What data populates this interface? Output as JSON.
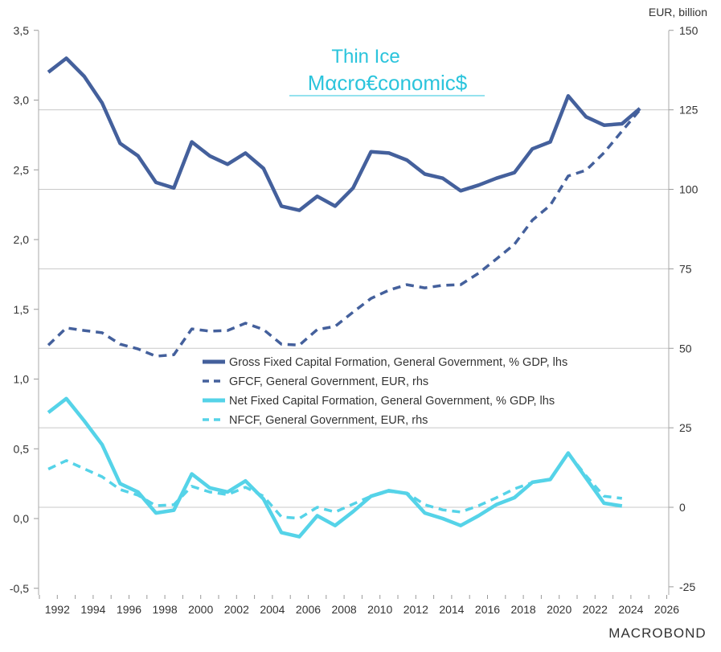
{
  "chart_data": {
    "type": "line",
    "title": "",
    "right_axis_unit": "EUR, billion",
    "x": [
      1991,
      1992,
      1993,
      1994,
      1995,
      1996,
      1997,
      1998,
      1999,
      2000,
      2001,
      2002,
      2003,
      2004,
      2005,
      2006,
      2007,
      2008,
      2009,
      2010,
      2011,
      2012,
      2013,
      2014,
      2015,
      2016,
      2017,
      2018,
      2019,
      2020,
      2021,
      2022,
      2023,
      2024
    ],
    "x_tick_labels": [
      "1992",
      "1994",
      "1996",
      "1998",
      "2000",
      "2002",
      "2004",
      "2006",
      "2008",
      "2010",
      "2012",
      "2014",
      "2016",
      "2018",
      "2020",
      "2022",
      "2024",
      "2026"
    ],
    "ylim_left": [
      -0.5,
      3.5
    ],
    "y_left_tick_labels": [
      "-0,5",
      "0,0",
      "0,5",
      "1,0",
      "1,5",
      "2,0",
      "2,5",
      "3,0",
      "3,5"
    ],
    "ylim_right": [
      -25,
      150
    ],
    "y_right_tick_labels": [
      "-25",
      "0",
      "25",
      "50",
      "75",
      "100",
      "125",
      "150"
    ],
    "grid": "horizontal, right-axis ticks",
    "legend_placement": "center",
    "series": [
      {
        "name": "Gross Fixed Capital Formation, General Government, % GDP, lhs",
        "axis": "left",
        "style": "solid",
        "color": "#44609c",
        "values": [
          3.2,
          3.3,
          3.17,
          2.98,
          2.69,
          2.6,
          2.41,
          2.37,
          2.7,
          2.6,
          2.54,
          2.62,
          2.51,
          2.24,
          2.21,
          2.31,
          2.24,
          2.37,
          2.63,
          2.62,
          2.57,
          2.47,
          2.44,
          2.35,
          2.39,
          2.44,
          2.48,
          2.65,
          2.7,
          3.03,
          2.88,
          2.82,
          2.83,
          2.94
        ]
      },
      {
        "name": "GFCF, General Government, EUR, rhs",
        "axis": "right",
        "style": "dashed",
        "color": "#44609c",
        "values": [
          51,
          56.4,
          55.6,
          54.9,
          51.3,
          49.8,
          47.5,
          48,
          56.1,
          55.4,
          55.6,
          57.9,
          55.9,
          51.3,
          51,
          55.9,
          56.9,
          61.4,
          65.7,
          68.3,
          70,
          69,
          69.8,
          70,
          73.6,
          78.1,
          82.7,
          90.3,
          95,
          104.2,
          106,
          111.5,
          118.3,
          125
        ]
      },
      {
        "name": "Net Fixed Capital Formation, General Government, % GDP, lhs",
        "axis": "left",
        "style": "solid",
        "color": "#55d3e8",
        "values": [
          0.76,
          0.86,
          0.7,
          0.53,
          0.25,
          0.19,
          0.04,
          0.06,
          0.32,
          0.22,
          0.19,
          0.27,
          0.14,
          -0.1,
          -0.13,
          0.02,
          -0.05,
          0.05,
          0.16,
          0.2,
          0.18,
          0.04,
          0.0,
          -0.05,
          0.02,
          0.1,
          0.15,
          0.26,
          0.28,
          0.47,
          0.29,
          0.11,
          0.09,
          null
        ]
      },
      {
        "name": "NFCF, General Government, EUR, rhs",
        "axis": "right",
        "style": "dashed",
        "color": "#55d3e8",
        "values": [
          12,
          14.7,
          12.1,
          9.6,
          5.6,
          3.8,
          0.5,
          0.8,
          6.6,
          4.8,
          4,
          6.3,
          3.5,
          -3,
          -3.5,
          0,
          -1.5,
          1,
          3.5,
          5,
          4.5,
          0.8,
          -0.8,
          -1.5,
          0.5,
          3,
          5.8,
          7.8,
          8.8,
          17,
          9.9,
          3.5,
          2.8,
          null
        ]
      }
    ]
  },
  "logo": {
    "line1": "Thin Ice",
    "line2": "Mαcro€conomic$"
  },
  "source_logo": "MACROBOND"
}
